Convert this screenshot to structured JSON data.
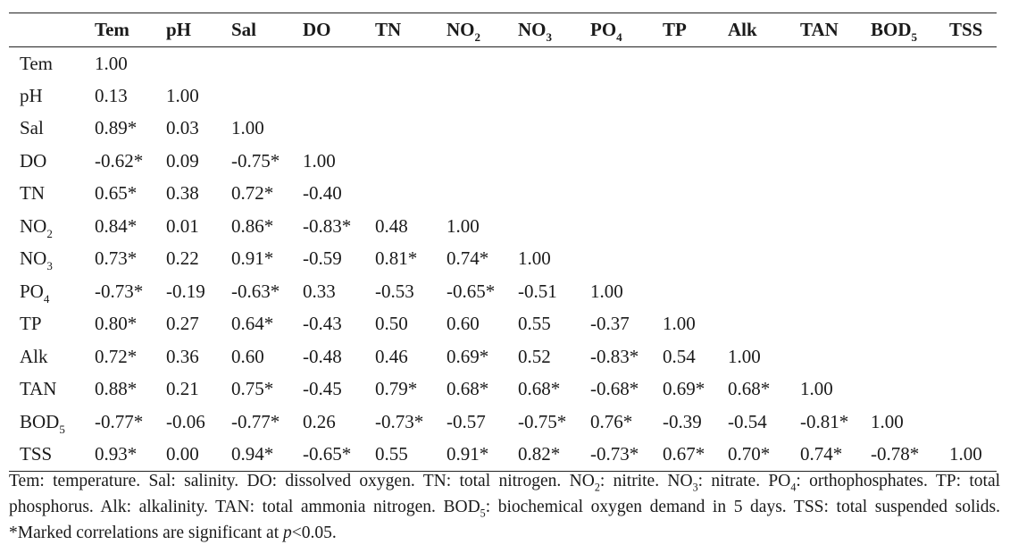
{
  "table": {
    "columns": [
      {
        "label": "Tem",
        "sub": ""
      },
      {
        "label": "pH",
        "sub": ""
      },
      {
        "label": "Sal",
        "sub": ""
      },
      {
        "label": "DO",
        "sub": ""
      },
      {
        "label": "TN",
        "sub": ""
      },
      {
        "label": "NO",
        "sub": "2"
      },
      {
        "label": "NO",
        "sub": "3"
      },
      {
        "label": "PO",
        "sub": "4"
      },
      {
        "label": "TP",
        "sub": ""
      },
      {
        "label": "Alk",
        "sub": ""
      },
      {
        "label": "TAN",
        "sub": ""
      },
      {
        "label": "BOD",
        "sub": "5"
      },
      {
        "label": "TSS",
        "sub": ""
      }
    ],
    "rows": [
      {
        "label": "Tem",
        "sub": "",
        "values": [
          "1.00"
        ]
      },
      {
        "label": "pH",
        "sub": "",
        "values": [
          "0.13",
          "1.00"
        ]
      },
      {
        "label": "Sal",
        "sub": "",
        "values": [
          "0.89*",
          "0.03",
          "1.00"
        ]
      },
      {
        "label": "DO",
        "sub": "",
        "values": [
          "-0.62*",
          "0.09",
          "-0.75*",
          "1.00"
        ]
      },
      {
        "label": "TN",
        "sub": "",
        "values": [
          "0.65*",
          "0.38",
          "0.72*",
          "-0.40"
        ]
      },
      {
        "label": "NO",
        "sub": "2",
        "values": [
          "0.84*",
          "0.01",
          "0.86*",
          "-0.83*",
          "0.48",
          "1.00"
        ]
      },
      {
        "label": "NO",
        "sub": "3",
        "values": [
          "0.73*",
          "0.22",
          "0.91*",
          "-0.59",
          "0.81*",
          "0.74*",
          "1.00"
        ]
      },
      {
        "label": "PO",
        "sub": "4",
        "values": [
          "-0.73*",
          "-0.19",
          "-0.63*",
          "0.33",
          "-0.53",
          "-0.65*",
          "-0.51",
          "1.00"
        ]
      },
      {
        "label": "TP",
        "sub": "",
        "values": [
          "0.80*",
          "0.27",
          "0.64*",
          "-0.43",
          "0.50",
          "0.60",
          "0.55",
          "-0.37",
          "1.00"
        ]
      },
      {
        "label": "Alk",
        "sub": "",
        "values": [
          "0.72*",
          "0.36",
          "0.60",
          "-0.48",
          "0.46",
          "0.69*",
          "0.52",
          "-0.83*",
          "0.54",
          "1.00"
        ]
      },
      {
        "label": "TAN",
        "sub": "",
        "values": [
          "0.88*",
          "0.21",
          "0.75*",
          "-0.45",
          "0.79*",
          "0.68*",
          "0.68*",
          "-0.68*",
          "0.69*",
          "0.68*",
          "1.00"
        ]
      },
      {
        "label": "BOD",
        "sub": "5",
        "values": [
          "-0.77*",
          "-0.06",
          "-0.77*",
          "0.26",
          "-0.73*",
          "-0.57",
          "-0.75*",
          "0.76*",
          "-0.39",
          "-0.54",
          "-0.81*",
          "1.00"
        ]
      },
      {
        "label": "TSS",
        "sub": "",
        "values": [
          "0.93*",
          "0.00",
          "0.94*",
          "-0.65*",
          "0.55",
          "0.91*",
          "0.82*",
          "-0.73*",
          "0.67*",
          "0.70*",
          "0.74*",
          "-0.78*",
          "1.00"
        ]
      }
    ]
  },
  "footnote": {
    "t1": "Tem: temperature. Sal: salinity. DO: dissolved oxygen. TN: total nitrogen. NO",
    "s1": "2",
    "t2": ": nitrite. NO",
    "s2": "3",
    "t3": ": nitrate. PO",
    "s3": "4",
    "t4": ": orthophosphates. TP: total phosphorus. Alk: alkalinity. TAN: total ammonia nitrogen. BOD",
    "s4": "5",
    "t5": ": biochemical oxygen demand in 5 days. TSS: total suspended solids. *Marked correlations are significant at ",
    "p": "p",
    "t6": "<0.05."
  }
}
